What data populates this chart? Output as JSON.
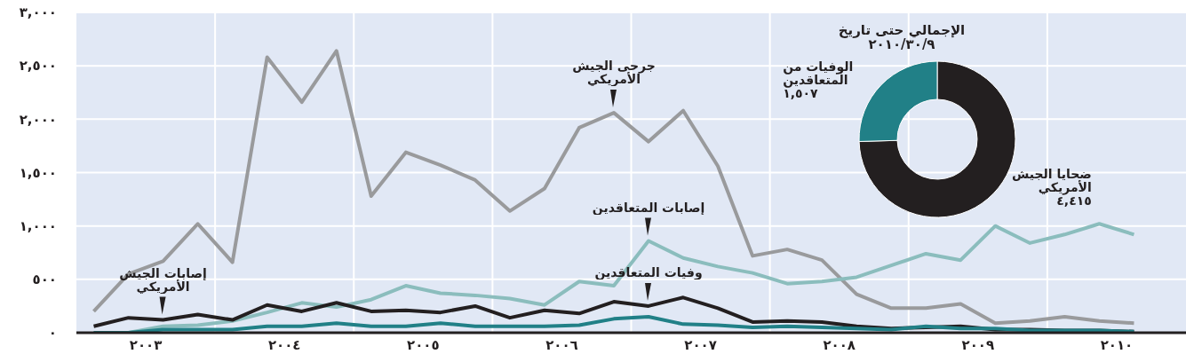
{
  "chart_data": [
    {
      "type": "line",
      "x": [
        2003.125,
        2003.375,
        2003.625,
        2003.875,
        2004.125,
        2004.375,
        2004.625,
        2004.875,
        2005.125,
        2005.375,
        2005.625,
        2005.875,
        2006.125,
        2006.375,
        2006.625,
        2006.875,
        2007.125,
        2007.375,
        2007.625,
        2007.875,
        2008.125,
        2008.375,
        2008.625,
        2008.875,
        2009.125,
        2009.375,
        2009.625,
        2009.875,
        2010.125,
        2010.375,
        2010.625
      ],
      "xlim": [
        2003,
        2011
      ],
      "xticks": [
        {
          "value": 2003.5,
          "label": "٢٠٠٣"
        },
        {
          "value": 2004,
          "label": null
        },
        {
          "value": 2004.5,
          "label": "٢٠٠٤"
        },
        {
          "value": 2005,
          "label": null
        },
        {
          "value": 2005.5,
          "label": "٢٠٠٥"
        },
        {
          "value": 2006,
          "label": null
        },
        {
          "value": 2006.5,
          "label": "٢٠٠٦"
        },
        {
          "value": 2007,
          "label": null
        },
        {
          "value": 2007.5,
          "label": "٢٠٠٧"
        },
        {
          "value": 2008,
          "label": null
        },
        {
          "value": 2008.5,
          "label": "٢٠٠٨"
        },
        {
          "value": 2009,
          "label": null
        },
        {
          "value": 2009.5,
          "label": "٢٠٠٩"
        },
        {
          "value": 2010,
          "label": null
        },
        {
          "value": 2010.5,
          "label": "٢٠١٠"
        }
      ],
      "ylim": [
        0,
        3000
      ],
      "yticks": [
        {
          "value": 0,
          "label": "٠"
        },
        {
          "value": 500,
          "label": "٥٠٠"
        },
        {
          "value": 1000,
          "label": "١,٠٠٠"
        },
        {
          "value": 1500,
          "label": "١,٥٠٠"
        },
        {
          "value": 2000,
          "label": "٢,٠٠٠"
        },
        {
          "value": 2500,
          "label": "٢,٥٠٠"
        },
        {
          "value": 3000,
          "label": "٣,٠٠٠"
        }
      ],
      "grid": true,
      "marker": "none",
      "line_style": "solid",
      "series": [
        {
          "type": "line",
          "color": "#999a9c",
          "values": [
            200,
            550,
            670,
            1020,
            660,
            2580,
            2160,
            2640,
            1280,
            1690,
            1570,
            1430,
            1140,
            1350,
            1920,
            2060,
            1790,
            2080,
            1560,
            720,
            780,
            680,
            360,
            230,
            230,
            270,
            90,
            110,
            150,
            110,
            90
          ]
        },
        {
          "type": "line",
          "color": "#8bbdbd",
          "values": [
            0,
            0,
            60,
            70,
            110,
            190,
            280,
            240,
            310,
            440,
            370,
            350,
            320,
            260,
            480,
            440,
            860,
            700,
            620,
            560,
            460,
            480,
            520,
            630,
            740,
            680,
            1000,
            840,
            920,
            1020,
            920
          ]
        },
        {
          "type": "line",
          "color": "#231f20",
          "values": [
            60,
            140,
            120,
            170,
            120,
            260,
            200,
            280,
            200,
            210,
            190,
            250,
            140,
            210,
            180,
            290,
            250,
            330,
            230,
            100,
            110,
            100,
            60,
            40,
            50,
            60,
            30,
            30,
            20,
            20,
            10
          ]
        },
        {
          "type": "line",
          "color": "#218087",
          "values": [
            0,
            0,
            30,
            30,
            30,
            60,
            60,
            90,
            60,
            60,
            90,
            60,
            60,
            60,
            70,
            130,
            150,
            80,
            70,
            50,
            60,
            50,
            40,
            30,
            60,
            40,
            40,
            20,
            20,
            20,
            10
          ]
        }
      ],
      "annotations": [
        {
          "text": "جرحى الجيش الأمريكي",
          "x": 2006.875,
          "y": 2060
        },
        {
          "text": "إصابات المتعاقدين",
          "x": 2007.125,
          "y": 860
        },
        {
          "text": "إصابات الجيش الأمريكي",
          "x": 2003.625,
          "y": 120
        },
        {
          "text": "وفيات المتعاقدين",
          "x": 2007.125,
          "y": 250
        }
      ]
    },
    {
      "type": "donut",
      "title": "الإجمالي حتى تاريخ ٢٠١٠/٣٠/٩",
      "categories": [
        "ضحايا الجيش الأمريكي",
        "الوفيات من المتعاقدين"
      ],
      "values": [
        4415,
        1507
      ],
      "colors": [
        "#231f20",
        "#218087"
      ],
      "value_labels": [
        "٤,٤١٥",
        "١,٥٠٧"
      ]
    }
  ]
}
